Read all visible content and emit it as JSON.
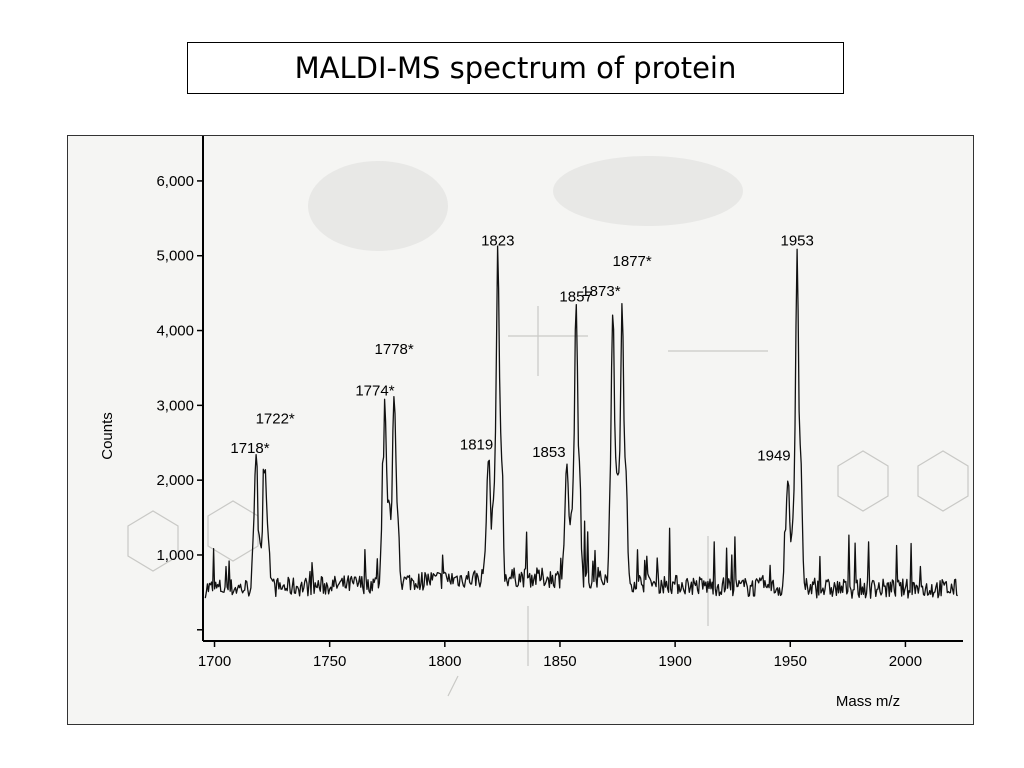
{
  "slide": {
    "title": "MALDI-MS spectrum of protein"
  },
  "chart_data": {
    "type": "line",
    "xlabel": "Mass m/z",
    "ylabel": "Counts",
    "xlim": [
      1695,
      2025
    ],
    "ylim": [
      -150,
      6400
    ],
    "xticks": [
      {
        "value": 1700,
        "label": "1700"
      },
      {
        "value": 1750,
        "label": "1750"
      },
      {
        "value": 1800,
        "label": "1800"
      },
      {
        "value": 1850,
        "label": "1850"
      },
      {
        "value": 1900,
        "label": "1900"
      },
      {
        "value": 1950,
        "label": "1950"
      },
      {
        "value": 2000,
        "label": "2000"
      }
    ],
    "yticks": [
      {
        "value": 1000,
        "label": "1,000"
      },
      {
        "value": 2000,
        "label": "2,000"
      },
      {
        "value": 3000,
        "label": "3,000"
      },
      {
        "value": 4000,
        "label": "4,000"
      },
      {
        "value": 5000,
        "label": "5,000"
      },
      {
        "value": 6000,
        "label": "6,000"
      }
    ],
    "peaks": [
      {
        "mz": 1718,
        "counts": 2200,
        "label": "1718*"
      },
      {
        "mz": 1722,
        "counts": 2250,
        "label": "1722*"
      },
      {
        "mz": 1774,
        "counts": 3000,
        "label": "1774*"
      },
      {
        "mz": 1778,
        "counts": 3150,
        "label": "1778*"
      },
      {
        "mz": 1819,
        "counts": 2250,
        "label": "1819"
      },
      {
        "mz": 1823,
        "counts": 4950,
        "label": "1823"
      },
      {
        "mz": 1853,
        "counts": 2150,
        "label": "1853"
      },
      {
        "mz": 1857,
        "counts": 4200,
        "label": "1857"
      },
      {
        "mz": 1873,
        "counts": 4250,
        "label": "1873*"
      },
      {
        "mz": 1877,
        "counts": 4300,
        "label": "1877*"
      },
      {
        "mz": 1949,
        "counts": 2100,
        "label": "1949"
      },
      {
        "mz": 1953,
        "counts": 4950,
        "label": "1953"
      }
    ],
    "baseline": 550,
    "grid": false,
    "legend": "none"
  }
}
